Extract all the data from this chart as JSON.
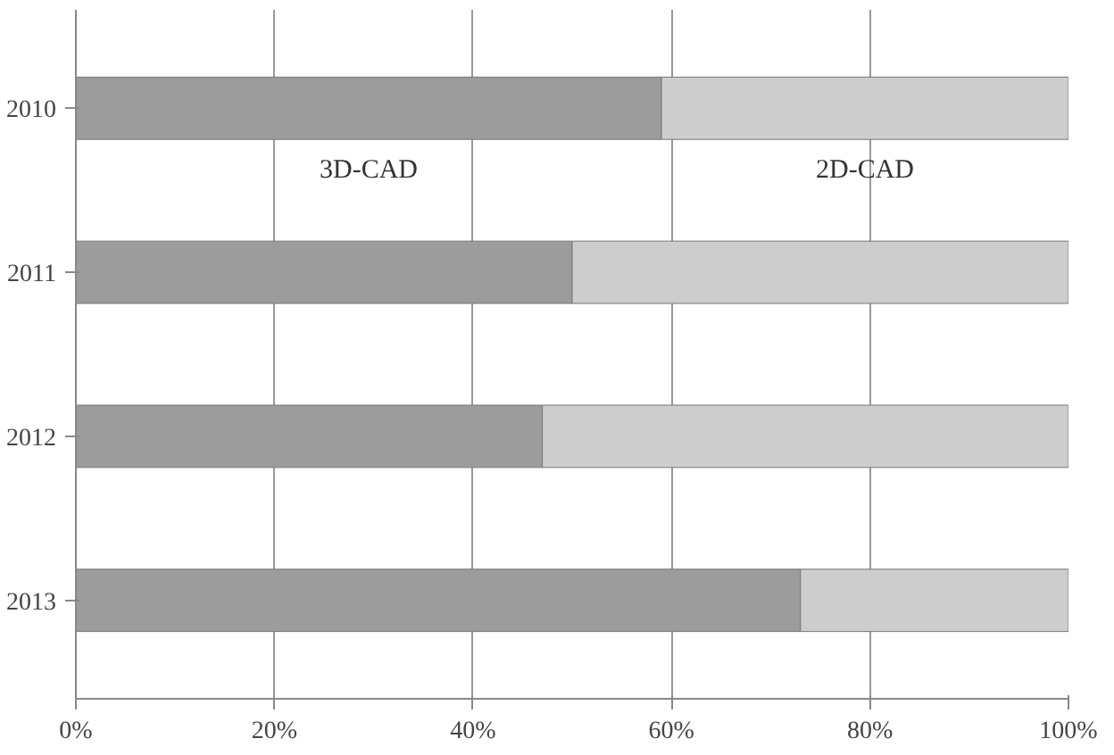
{
  "chart_data": {
    "type": "bar",
    "orientation": "horizontal",
    "stacked": true,
    "categories": [
      "2010",
      "2011",
      "2012",
      "2013"
    ],
    "series": [
      {
        "name": "3D-CAD",
        "color": "#9c9c9c",
        "values": [
          59,
          50,
          47,
          73
        ]
      },
      {
        "name": "2D-CAD",
        "color": "#cdcdcd",
        "values": [
          41,
          50,
          53,
          27
        ]
      }
    ],
    "xlim": [
      0,
      100
    ],
    "xticks": [
      {
        "value": 0,
        "label": "0%"
      },
      {
        "value": 20,
        "label": "20%"
      },
      {
        "value": 40,
        "label": "40%"
      },
      {
        "value": 60,
        "label": "60%"
      },
      {
        "value": 80,
        "label": "80%"
      },
      {
        "value": 100,
        "label": "100%"
      }
    ],
    "grid": "x"
  }
}
